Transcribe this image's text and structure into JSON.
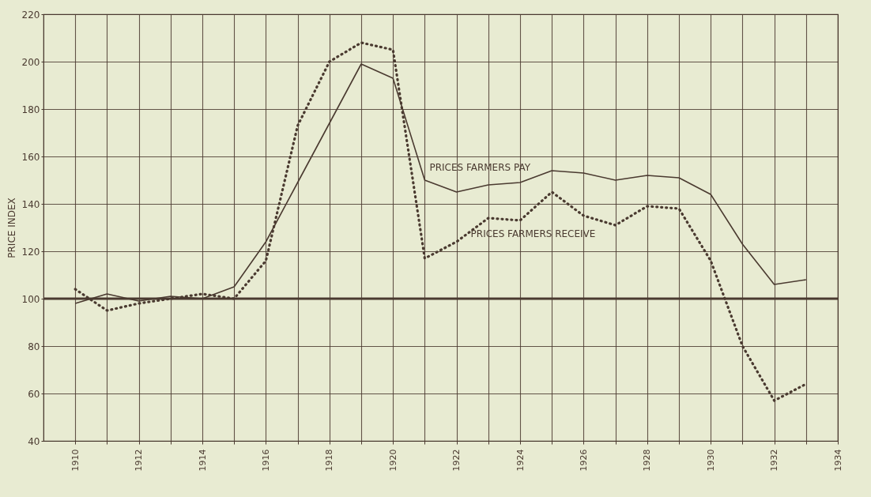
{
  "chart_data": {
    "type": "line",
    "ylabel": "PRICE INDEX",
    "x": [
      1910,
      1911,
      1912,
      1913,
      1914,
      1915,
      1916,
      1917,
      1918,
      1919,
      1920,
      1921,
      1922,
      1923,
      1924,
      1925,
      1926,
      1927,
      1928,
      1929,
      1930,
      1931,
      1932,
      1933
    ],
    "series": [
      {
        "name": "PRICES  FARMERS  PAY",
        "color": "#4a3a30",
        "line_style": "solid",
        "values": [
          98,
          102,
          99,
          101,
          100,
          105,
          124,
          149,
          174,
          199,
          193,
          150,
          145,
          148,
          149,
          154,
          153,
          150,
          152,
          151,
          144,
          123,
          106,
          108
        ]
      },
      {
        "name": "PRICES FARMERS RECEIVE",
        "color": "#4a3a30",
        "line_style": "dotted",
        "values": [
          104,
          95,
          98,
          100,
          102,
          100,
          116,
          173,
          200,
          208,
          205,
          117,
          124,
          134,
          133,
          145,
          135,
          131,
          139,
          138,
          116,
          80,
          57,
          64
        ]
      }
    ],
    "xlim": [
      1909,
      1934
    ],
    "xticks": [
      1910,
      {
        "value": 1911,
        "label": null
      },
      1912,
      {
        "value": 1913,
        "label": null
      },
      1914,
      {
        "value": 1915,
        "label": null
      },
      1916,
      {
        "value": 1917,
        "label": null
      },
      1918,
      {
        "value": 1919,
        "label": null
      },
      1920,
      {
        "value": 1921,
        "label": null
      },
      1922,
      {
        "value": 1923,
        "label": null
      },
      1924,
      {
        "value": 1925,
        "label": null
      },
      1926,
      {
        "value": 1927,
        "label": null
      },
      1928,
      {
        "value": 1929,
        "label": null
      },
      1930,
      {
        "value": 1931,
        "label": null
      },
      1932,
      {
        "value": 1933,
        "label": null
      },
      1934
    ],
    "ylim": [
      40,
      220
    ],
    "yticks": [
      40,
      60,
      80,
      100,
      120,
      140,
      160,
      180,
      200,
      220
    ],
    "grid": true,
    "legend": false,
    "marker": "none",
    "ref_lines": [
      {
        "axis": "y",
        "value": 100,
        "color": "#4a3a30"
      }
    ]
  }
}
